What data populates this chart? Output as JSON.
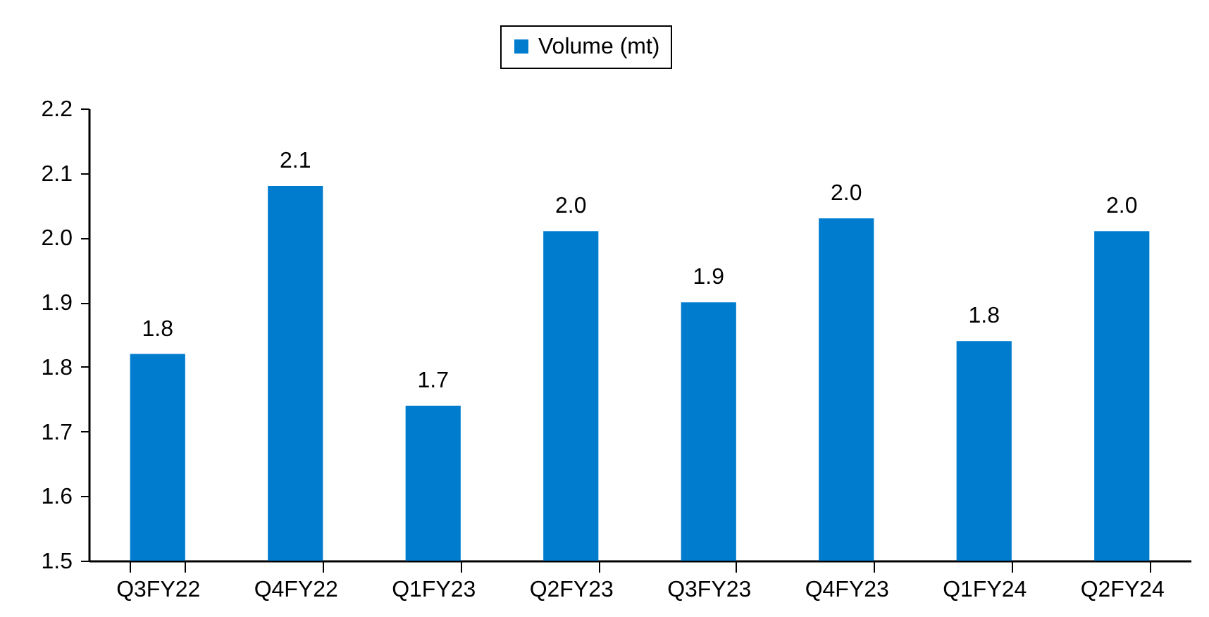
{
  "chart_data": {
    "type": "bar",
    "categories": [
      "Q3FY22",
      "Q4FY22",
      "Q1FY23",
      "Q2FY23",
      "Q3FY23",
      "Q4FY23",
      "Q1FY24",
      "Q2FY24"
    ],
    "series": [
      {
        "name": "Volume (mt)",
        "color": "#007ccf",
        "values": [
          1.82,
          2.08,
          1.74,
          2.01,
          1.9,
          2.03,
          1.84,
          2.01
        ],
        "value_labels": [
          "1.8",
          "2.1",
          "1.7",
          "2.0",
          "1.9",
          "2.0",
          "1.8",
          "2.0"
        ]
      }
    ],
    "ylim": [
      1.5,
      2.2
    ],
    "yticks": [
      {
        "value": 1.5,
        "label": "1.5"
      },
      1.6,
      1.7,
      1.8,
      1.9,
      {
        "value": 2.0,
        "label": "2.0"
      },
      2.1,
      2.2
    ],
    "grid": false,
    "legend": "top"
  }
}
